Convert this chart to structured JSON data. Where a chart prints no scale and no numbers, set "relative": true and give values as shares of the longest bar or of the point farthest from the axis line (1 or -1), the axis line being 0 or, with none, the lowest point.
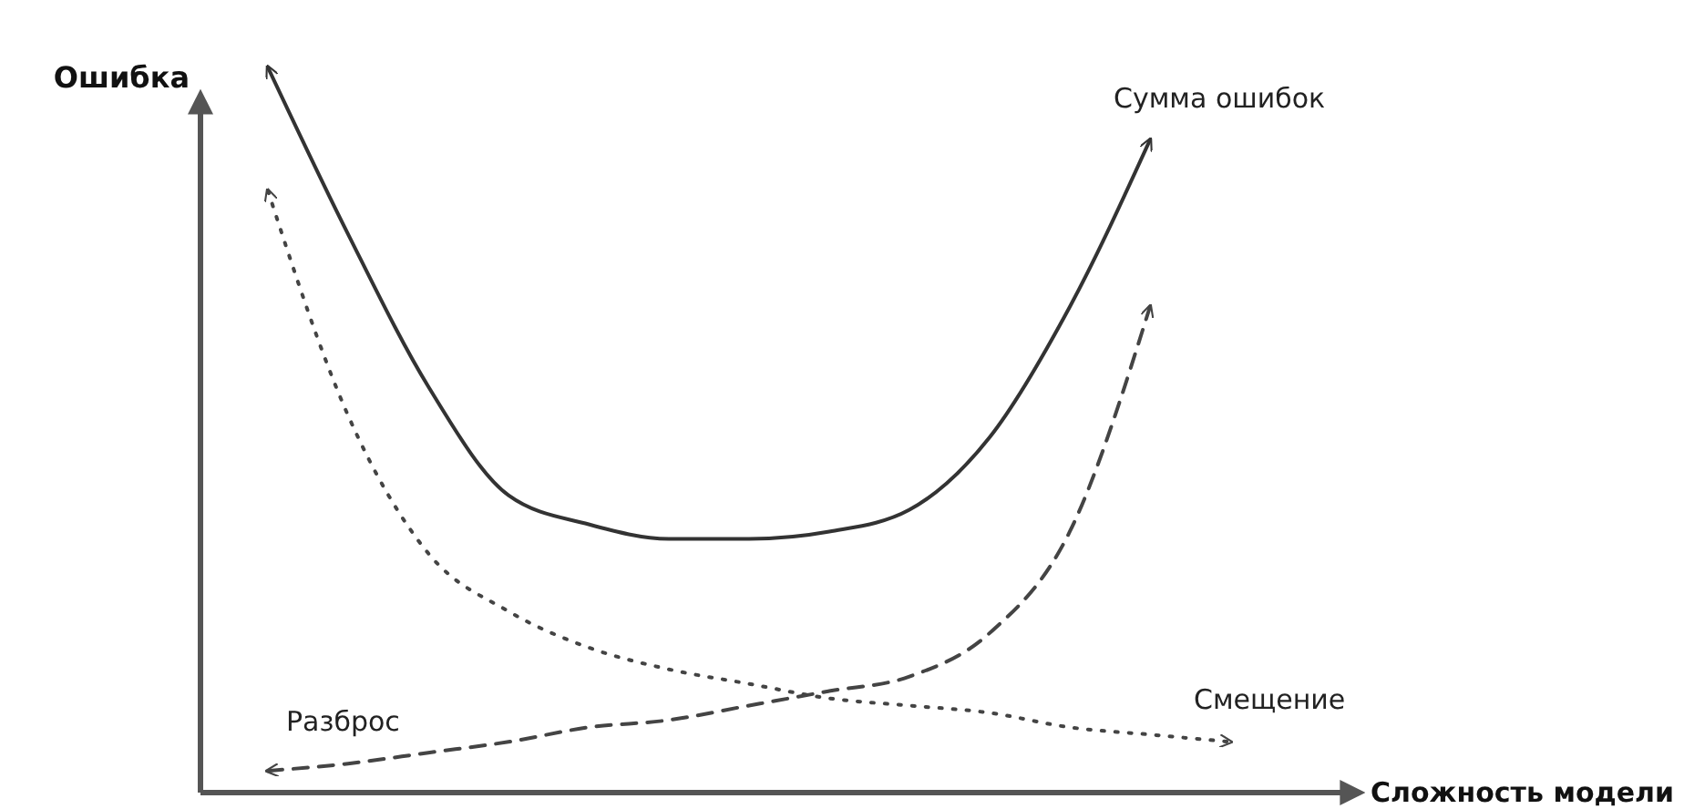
{
  "chart_data": {
    "type": "line",
    "relative": true,
    "xlabel": "Сложность модели",
    "ylabel": "Ошибка",
    "legend": false,
    "categories": [
      null,
      null,
      null,
      null,
      null,
      null,
      null,
      null,
      null,
      null,
      null,
      null,
      null
    ],
    "series": [
      {
        "name": "Сумма ошибок",
        "color": "#333333",
        "line_style": "solid",
        "values": [
          1.0,
          0.77,
          0.56,
          0.41,
          0.37,
          0.35,
          0.35,
          0.36,
          0.39,
          0.49,
          0.67,
          0.9,
          null
        ]
      },
      {
        "name": "Смещение",
        "color": "#444444",
        "line_style": "dotted",
        "values": [
          0.83,
          0.52,
          0.33,
          0.25,
          0.2,
          0.17,
          0.15,
          0.13,
          0.12,
          0.11,
          0.09,
          0.08,
          0.07
        ]
      },
      {
        "name": "Разброс",
        "color": "#444444",
        "line_style": "dashed",
        "values": [
          0.03,
          0.04,
          0.055,
          0.07,
          0.09,
          0.1,
          0.12,
          0.14,
          0.16,
          0.22,
          0.36,
          0.67,
          null
        ]
      }
    ]
  }
}
